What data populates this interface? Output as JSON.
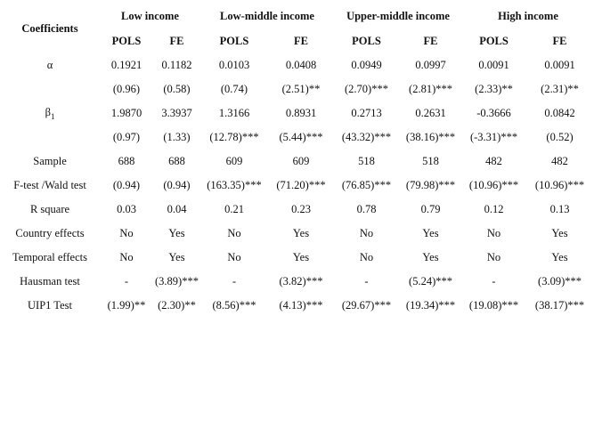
{
  "header": {
    "corner": "Coefficients",
    "groups": [
      "Low income",
      "Low-middle income",
      "Upper-middle income",
      "High income"
    ],
    "subheaders": [
      "POLS",
      "FE",
      "POLS",
      "FE",
      "POLS",
      "FE",
      "POLS",
      "FE"
    ]
  },
  "rows": [
    {
      "label": "α",
      "cells": [
        "0.1921",
        "0.1182",
        "0.0103",
        "0.0408",
        "0.0949",
        "0.0997",
        "0.0091",
        "0.0091"
      ]
    },
    {
      "label": "",
      "cells": [
        "(0.96)",
        "(0.58)",
        "(0.74)",
        "(2.51)**",
        "(2.70)***",
        "(2.81)***",
        "(2.33)**",
        "(2.31)**"
      ]
    },
    {
      "label": "β",
      "sub": "1",
      "cells": [
        "1.9870",
        "3.3937",
        "1.3166",
        "0.8931",
        "0.2713",
        "0.2631",
        "-0.3666",
        "0.0842"
      ]
    },
    {
      "label": "",
      "cells": [
        "(0.97)",
        "(1.33)",
        "(12.78)***",
        "(5.44)***",
        "(43.32)***",
        "(38.16)***",
        "(-3.31)***",
        "(0.52)"
      ]
    },
    {
      "label": "Sample",
      "cells": [
        "688",
        "688",
        "609",
        "609",
        "518",
        "518",
        "482",
        "482"
      ]
    },
    {
      "label": "F-test /Wald test",
      "cells": [
        "(0.94)",
        "(0.94)",
        "(163.35)***",
        "(71.20)***",
        "(76.85)***",
        "(79.98)***",
        "(10.96)***",
        "(10.96)***"
      ]
    },
    {
      "label": "R square",
      "cells": [
        "0.03",
        "0.04",
        "0.21",
        "0.23",
        "0.78",
        "0.79",
        "0.12",
        "0.13"
      ]
    },
    {
      "label": "Country effects",
      "cells": [
        "No",
        "Yes",
        "No",
        "Yes",
        "No",
        "Yes",
        "No",
        "Yes"
      ]
    },
    {
      "label": "Temporal effects",
      "cells": [
        "No",
        "Yes",
        "No",
        "Yes",
        "No",
        "Yes",
        "No",
        "Yes"
      ]
    },
    {
      "label": "Hausman test",
      "cells": [
        "-",
        "(3.89)***",
        "-",
        "(3.82)***",
        "-",
        "(5.24)***",
        "-",
        "(3.09)***"
      ]
    },
    {
      "label": "UIP1 Test",
      "cells": [
        "(1.99)**",
        "(2.30)**",
        "(8.56)***",
        "(4.13)***",
        "(29.67)***",
        "(19.34)***",
        "(19.08)***",
        "(38.17)***"
      ]
    }
  ]
}
